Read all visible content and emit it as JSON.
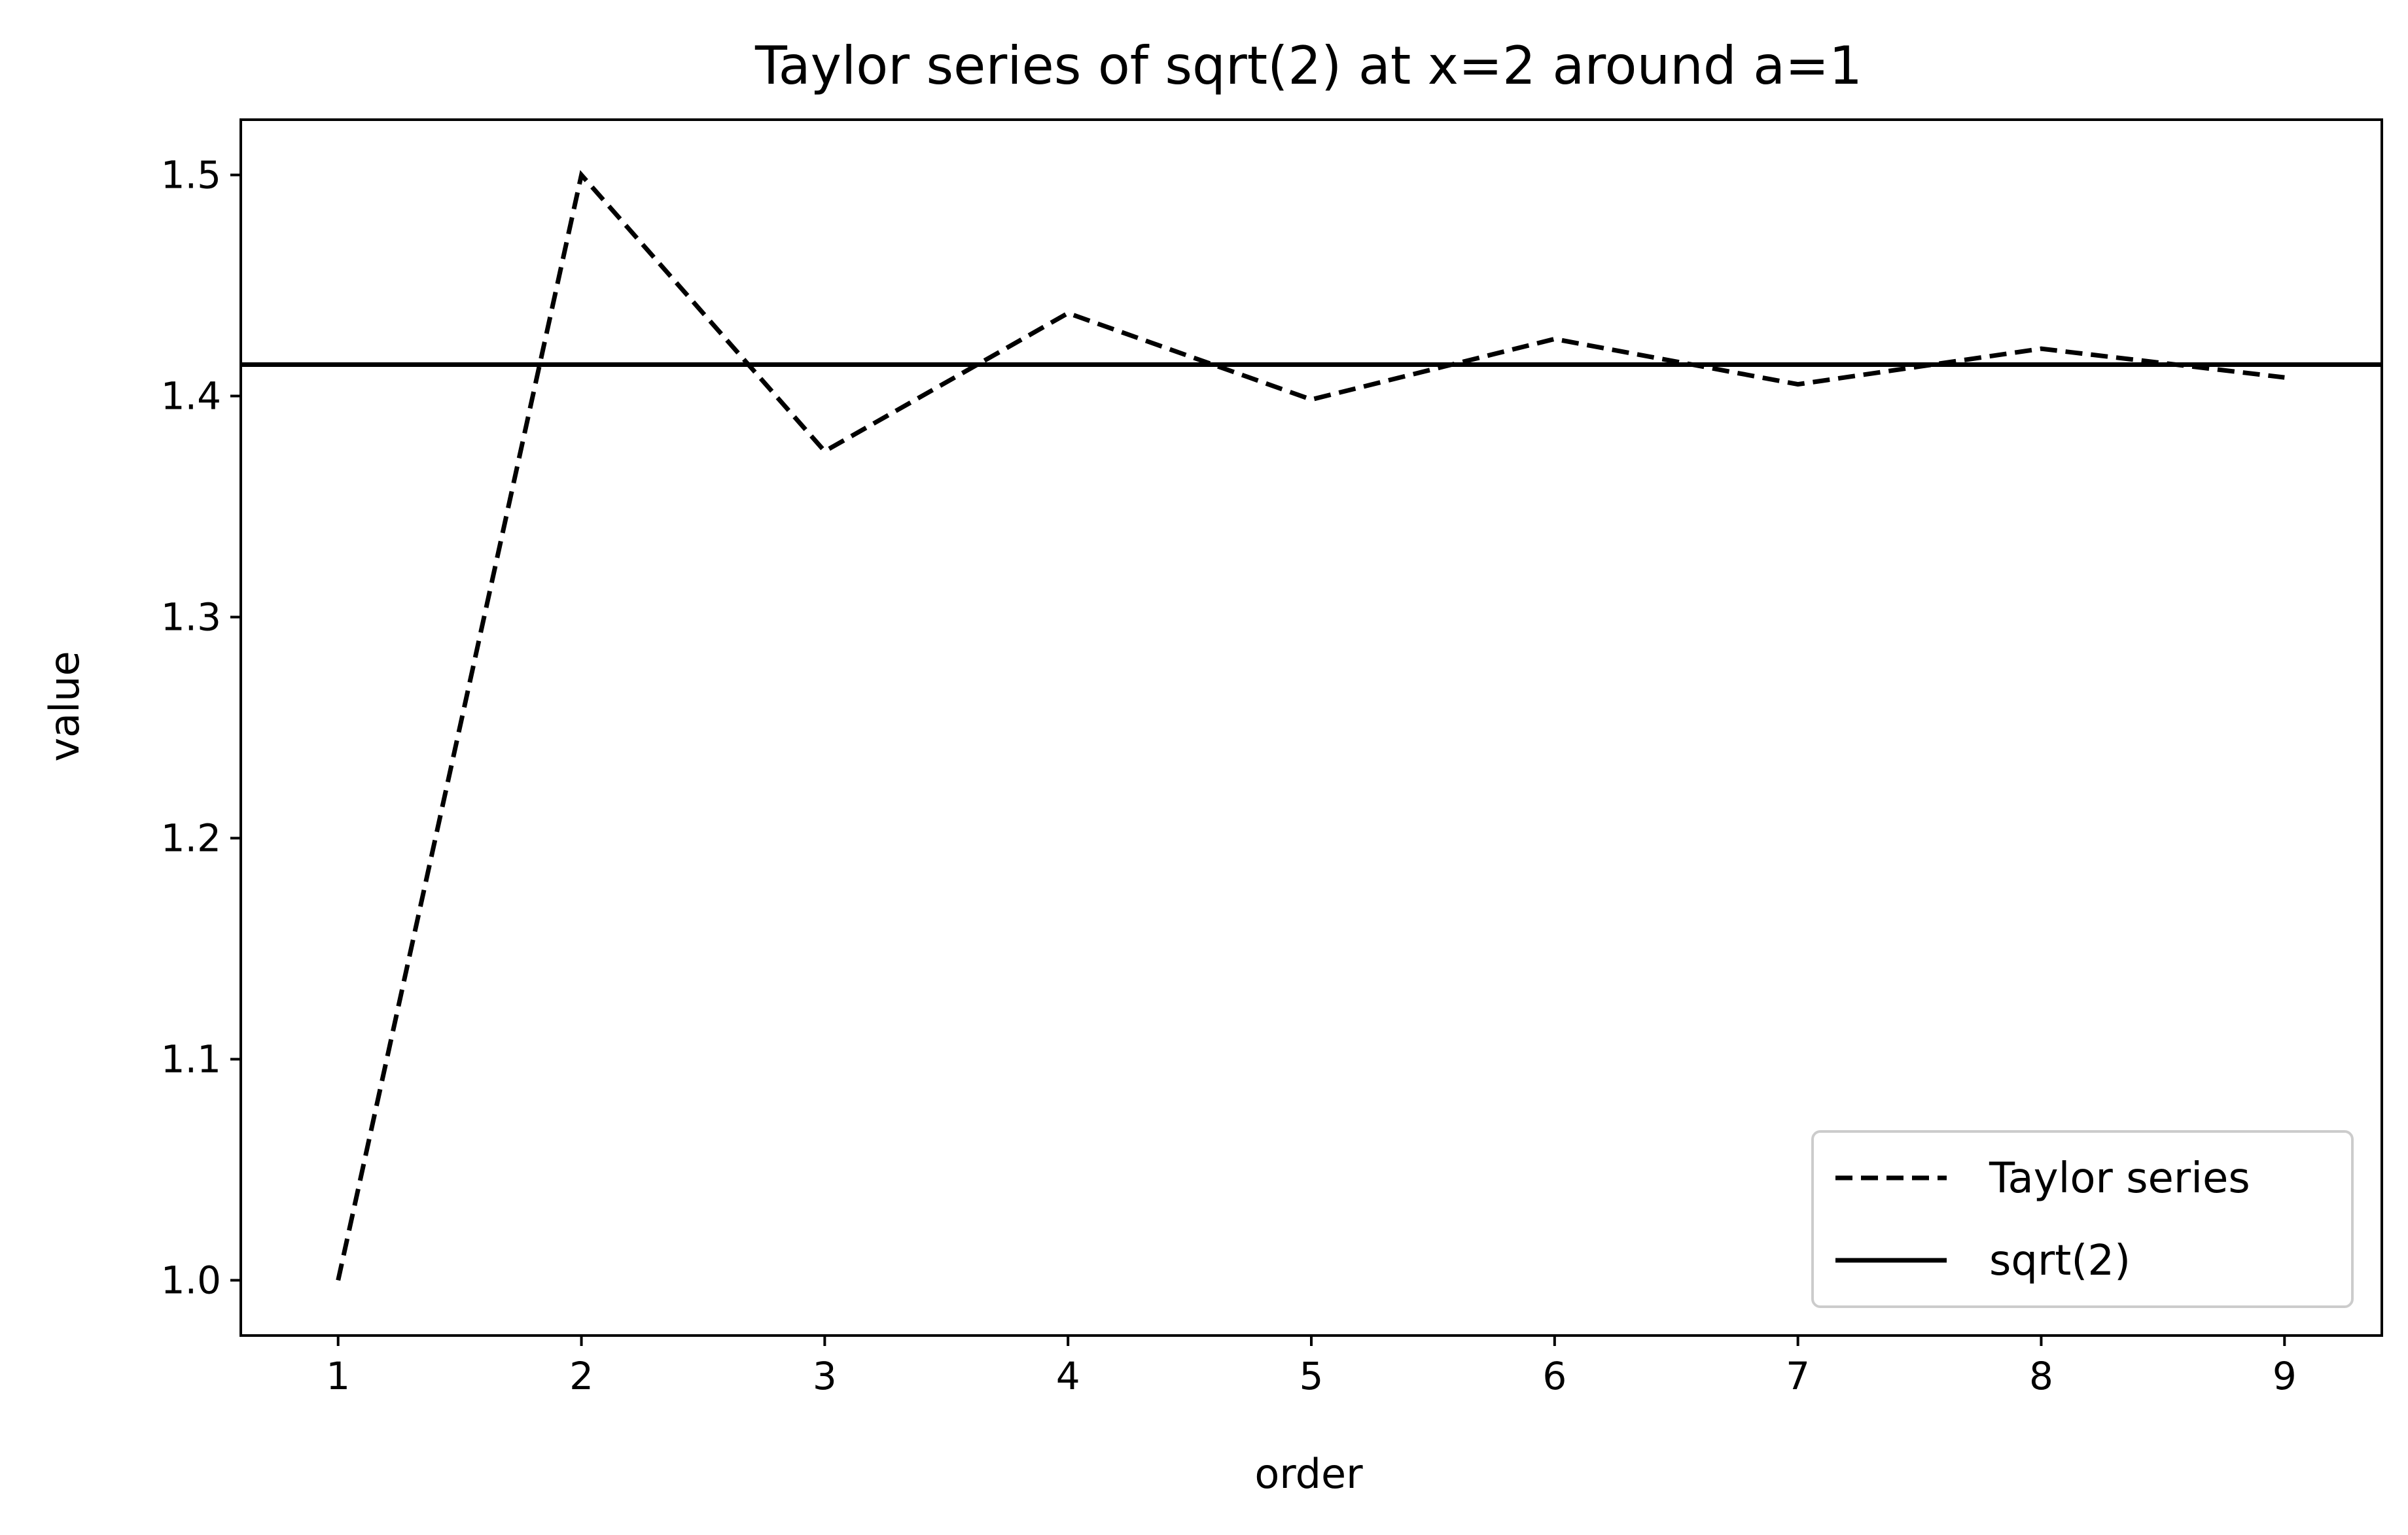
{
  "chart_data": {
    "type": "line",
    "title": "Taylor series of sqrt(2) at x=2 around a=1",
    "xlabel": "order",
    "ylabel": "value",
    "xlim": [
      0.6,
      9.4
    ],
    "ylim": [
      0.975,
      1.525
    ],
    "xticks": [
      1,
      2,
      3,
      4,
      5,
      6,
      7,
      8,
      9
    ],
    "xtick_labels": [
      "1",
      "2",
      "3",
      "4",
      "5",
      "6",
      "7",
      "8",
      "9"
    ],
    "yticks": [
      1.0,
      1.1,
      1.2,
      1.3,
      1.4,
      1.5
    ],
    "ytick_labels": [
      "1.0",
      "1.1",
      "1.2",
      "1.3",
      "1.4",
      "1.5"
    ],
    "grid": false,
    "legend_position": "lower-right",
    "series": [
      {
        "name": "Taylor series",
        "style": "dashed",
        "color": "#000000",
        "x": [
          1,
          2,
          3,
          4,
          5,
          6,
          7,
          8,
          9
        ],
        "y": [
          1.0,
          1.5,
          1.375,
          1.4375,
          1.3984,
          1.4258,
          1.4053,
          1.4214,
          1.4084
        ]
      },
      {
        "name": "sqrt(2)",
        "style": "solid",
        "color": "#000000",
        "hline": 1.41421
      }
    ]
  }
}
